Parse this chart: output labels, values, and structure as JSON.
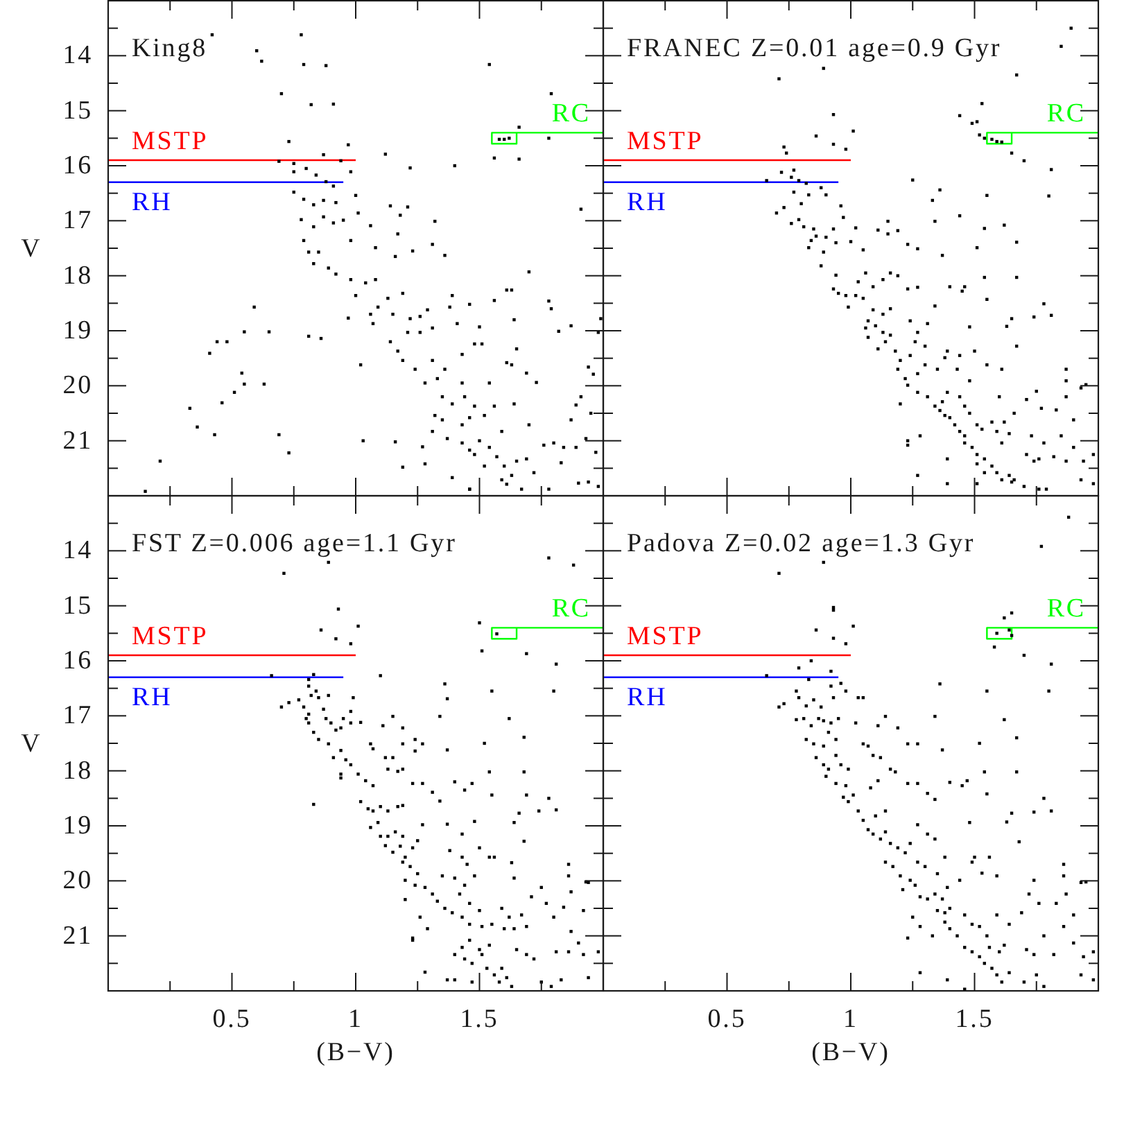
{
  "chart_data": [
    {
      "type": "scatter",
      "title": "King8",
      "ylabel": "V",
      "xlim": [
        0,
        2
      ],
      "ylim": [
        22,
        13
      ],
      "xticks": [
        {
          "value": 0.25,
          "label": null
        },
        0.5,
        {
          "value": 0.75,
          "label": null
        },
        1,
        {
          "value": 1.25,
          "label": null
        },
        1.5,
        {
          "value": 1.75,
          "label": null
        }
      ],
      "yticks": [
        {
          "value": 13.5,
          "label": null
        },
        14,
        {
          "value": 14.5,
          "label": null
        },
        15,
        {
          "value": 15.5,
          "label": null
        },
        16,
        {
          "value": 16.5,
          "label": null
        },
        17,
        {
          "value": 17.5,
          "label": null
        },
        18,
        {
          "value": 18.5,
          "label": null
        },
        19,
        {
          "value": 19.5,
          "label": null
        },
        20,
        {
          "value": 20.5,
          "label": null
        },
        21,
        {
          "value": 21.5,
          "label": null
        }
      ],
      "tick_labels": "y",
      "series": [
        {
          "type": "line",
          "name": "MSTP",
          "color": "#ff0000",
          "x": [
            0,
            1
          ],
          "values": [
            15.9,
            15.9
          ]
        },
        {
          "type": "line",
          "name": "RH",
          "color": "#0000ff",
          "x": [
            0,
            0.95
          ],
          "values": [
            16.3,
            16.3
          ]
        },
        {
          "type": "line",
          "name": "RC",
          "color": "#00ff00",
          "x": [
            2,
            1.55,
            1.55,
            1.65,
            1.65
          ],
          "values": [
            15.4,
            15.4,
            15.6,
            15.6,
            15.4
          ]
        },
        {
          "type": "scatter",
          "marker": "square",
          "color": "#000000",
          "x": [
            0.42,
            0.6,
            0.62,
            0.78,
            0.79,
            0.88,
            1.54,
            0.7,
            0.82,
            0.91,
            1.79,
            1.66,
            1.78,
            1.58,
            1.6,
            1.62,
            1.56,
            1.66,
            0.73,
            0.97,
            1.12,
            1.4,
            1.22,
            0.69,
            0.75,
            0.75,
            0.8,
            0.84,
            0.87,
            0.88,
            0.91,
            0.94,
            0.98,
            0.75,
            0.79,
            0.83,
            0.87,
            0.92,
            1.0,
            0.78,
            0.79,
            0.81,
            0.83,
            0.87,
            0.91,
            0.95,
            0.98,
            1.01,
            0.85,
            0.89,
            0.92,
            0.83,
            1.06,
            1.08,
            1.14,
            1.21,
            1.18,
            1.17,
            1.23,
            1.16,
            1.31,
            1.32,
            1.36,
            1.7,
            1.91,
            1.99,
            0.98,
            1.0,
            1.04,
            1.08,
            1.13,
            1.19,
            1.06,
            1.09,
            1.15,
            1.22,
            1.26,
            0.97,
            1.02,
            1.07,
            1.14,
            1.17,
            1.19,
            1.21,
            1.26,
            1.29,
            1.31,
            1.24,
            1.31,
            1.28,
            1.33,
            1.36,
            1.39,
            1.46,
            1.38,
            1.41,
            1.5,
            1.56,
            1.61,
            1.63,
            1.64,
            1.78,
            1.79,
            1.82,
            1.87,
            1.48,
            1.51,
            1.43,
            1.65,
            1.61,
            1.63,
            1.69,
            1.73,
            1.43,
            1.44,
            1.48,
            1.35,
            1.32,
            1.39,
            1.35,
            1.43,
            1.46,
            1.52,
            1.54,
            1.56,
            1.59,
            1.64,
            1.7,
            1.31,
            1.37,
            1.43,
            1.46,
            1.5,
            1.54,
            1.57,
            1.6,
            1.63,
            1.52,
            1.48,
            1.65,
            1.69,
            1.72,
            1.76,
            1.8,
            1.84,
            1.89,
            1.87,
            1.89,
            1.91,
            1.95,
            1.94,
            1.96,
            1.98,
            1.94,
            1.9,
            1.98,
            1.83,
            1.78,
            1.61,
            1.67,
            1.46,
            1.97,
            1.93,
            1.59,
            0.59,
            0.55,
            0.65,
            0.41,
            0.44,
            0.48,
            0.54,
            0.55,
            0.51,
            0.63,
            0.33,
            0.46,
            0.36,
            0.43,
            0.69,
            0.21,
            0.73,
            0.15,
            0.81,
            0.86,
            1.03,
            1.16,
            1.19,
            1.27,
            1.28,
            1.39,
            1.46
          ],
          "values": [
            13.62,
            13.91,
            14.1,
            13.62,
            14.16,
            14.18,
            14.16,
            14.69,
            14.89,
            14.88,
            14.69,
            15.3,
            15.5,
            15.52,
            15.52,
            15.5,
            15.86,
            15.88,
            15.56,
            15.62,
            15.79,
            16.0,
            16.04,
            15.92,
            15.96,
            16.11,
            16.05,
            16.17,
            15.8,
            16.29,
            16.37,
            15.91,
            16.11,
            16.48,
            16.61,
            16.71,
            16.63,
            16.67,
            16.54,
            16.98,
            17.36,
            17.57,
            17.11,
            16.93,
            17.04,
            16.99,
            17.36,
            16.86,
            17.57,
            17.86,
            17.97,
            17.78,
            17.09,
            17.49,
            16.73,
            16.75,
            16.9,
            17.24,
            17.55,
            17.65,
            17.43,
            17.01,
            17.63,
            17.93,
            16.79,
            18.78,
            18.07,
            18.36,
            18.13,
            18.07,
            18.41,
            18.32,
            18.7,
            18.57,
            18.7,
            18.78,
            18.74,
            18.77,
            19.62,
            18.87,
            19.2,
            19.37,
            19.54,
            19.03,
            19.03,
            18.62,
            18.95,
            19.7,
            19.54,
            19.95,
            19.87,
            19.7,
            18.36,
            18.52,
            18.57,
            18.87,
            18.93,
            18.45,
            18.26,
            18.26,
            18.8,
            18.46,
            18.6,
            19.01,
            18.91,
            19.24,
            19.24,
            19.43,
            19.33,
            19.58,
            19.62,
            19.77,
            19.94,
            19.95,
            20.2,
            20.37,
            20.2,
            20.54,
            20.33,
            20.62,
            20.71,
            20.58,
            20.54,
            19.95,
            20.37,
            20.83,
            20.33,
            20.71,
            20.83,
            20.96,
            21.04,
            21.17,
            21.0,
            21.12,
            21.29,
            21.46,
            21.63,
            21.46,
            21.25,
            21.37,
            21.33,
            21.58,
            21.08,
            21.04,
            21.12,
            21.12,
            20.62,
            20.35,
            20.2,
            20.5,
            19.66,
            19.79,
            19.03,
            21.75,
            21.77,
            21.83,
            21.4,
            21.88,
            21.79,
            21.88,
            21.88,
            21.21,
            20.96,
            21.71,
            18.57,
            19.02,
            19.02,
            19.41,
            19.2,
            19.2,
            19.77,
            19.97,
            20.12,
            19.97,
            20.41,
            20.31,
            20.75,
            20.89,
            20.89,
            21.37,
            21.22,
            21.92,
            19.1,
            19.14,
            21.0,
            21.02,
            21.48,
            21.11,
            21.42,
            21.67,
            21.88
          ]
        }
      ]
    },
    {
      "type": "scatter",
      "title": "FRANEC Z=0.01 age=0.9 Gyr",
      "xlim": [
        0,
        2
      ],
      "ylim": [
        22,
        13
      ],
      "xticks": [
        {
          "value": 0.25,
          "label": null
        },
        0.5,
        {
          "value": 0.75,
          "label": null
        },
        1,
        {
          "value": 1.25,
          "label": null
        },
        1.5,
        {
          "value": 1.75,
          "label": null
        }
      ],
      "yticks": [
        {
          "value": 13.5,
          "label": null
        },
        14,
        {
          "value": 14.5,
          "label": null
        },
        15,
        {
          "value": 15.5,
          "label": null
        },
        16,
        {
          "value": 16.5,
          "label": null
        },
        17,
        {
          "value": 17.5,
          "label": null
        },
        18,
        {
          "value": 18.5,
          "label": null
        },
        19,
        {
          "value": 19.5,
          "label": null
        },
        20,
        {
          "value": 20.5,
          "label": null
        },
        21,
        {
          "value": 21.5,
          "label": null
        }
      ],
      "tick_labels": false,
      "series": [
        {
          "type": "line",
          "name": "MSTP",
          "color": "#ff0000",
          "x": [
            0,
            1
          ],
          "values": [
            15.9,
            15.9
          ]
        },
        {
          "type": "line",
          "name": "RH",
          "color": "#0000ff",
          "x": [
            0,
            0.95
          ],
          "values": [
            16.3,
            16.3
          ]
        },
        {
          "type": "line",
          "name": "RC",
          "color": "#00ff00",
          "x": [
            2,
            1.55,
            1.55,
            1.65,
            1.65
          ],
          "values": [
            15.4,
            15.4,
            15.6,
            15.6,
            15.4
          ]
        },
        {
          "type": "scatter",
          "marker": "square",
          "color": "#000000",
          "x": [
            1.89,
            1.85,
            1.67,
            0.71,
            0.89,
            1.53,
            1.44,
            1.49,
            1.51,
            0.93,
            0.86,
            1.01,
            0.93,
            0.98,
            0.73,
            0.74,
            1.52,
            1.54,
            1.57,
            1.59,
            1.61,
            1.65,
            1.7,
            1.81,
            1.25,
            1.8,
            1.55,
            1.36,
            1.33,
            0.66,
            0.72,
            0.77,
            0.76,
            0.79,
            0.82,
            0.88,
            0.7,
            0.73,
            0.77,
            0.8,
            0.83,
            0.9,
            0.96,
            0.76,
            0.79,
            0.81,
            0.85,
            0.86,
            0.84,
            0.83,
            0.9,
            0.93,
            0.94,
            0.97,
            1.02,
            0.89,
            0.88,
            0.94,
            0.93,
            0.95,
            0.98,
            0.99,
            1.03,
            1.06,
            1.05,
            1.0,
            1.11,
            1.15,
            1.19,
            1.15,
            1.23,
            1.27,
            1.09,
            1.13,
            1.16,
            1.19,
            1.02,
            1.05,
            1.09,
            1.13,
            1.16,
            1.07,
            1.1,
            1.13,
            1.06,
            1.07,
            1.11,
            1.14,
            1.16,
            1.18,
            1.2,
            1.24,
            1.26,
            1.27,
            1.3,
            1.23,
            1.27,
            1.34,
            1.34,
            1.37,
            1.44,
            1.54,
            1.62,
            1.67,
            1.51,
            1.4,
            1.45,
            1.46,
            1.54,
            1.67,
            1.55,
            1.78,
            1.81,
            1.74,
            1.65,
            1.63,
            1.67,
            1.48,
            1.24,
            1.31,
            1.19,
            1.22,
            1.23,
            1.27,
            1.3,
            1.35,
            1.38,
            1.39,
            1.44,
            1.5,
            1.43,
            1.48,
            1.55,
            1.61,
            1.2,
            1.27,
            1.31,
            1.34,
            1.36,
            1.38,
            1.4,
            1.42,
            1.37,
            1.39,
            1.44,
            1.46,
            1.48,
            1.51,
            1.53,
            1.57,
            1.59,
            1.44,
            1.46,
            1.46,
            1.49,
            1.51,
            1.54,
            1.57,
            1.59,
            1.61,
            1.64,
            1.65,
            1.51,
            1.54,
            1.23,
            1.23,
            1.28,
            1.27,
            1.39,
            1.39,
            1.51,
            1.6,
            1.62,
            1.66,
            1.71,
            1.75,
            1.77,
            1.83,
            1.87,
            1.87,
            1.87,
            1.93,
            1.95,
            1.9,
            1.85,
            1.78,
            1.73,
            1.71,
            1.74,
            1.76,
            1.82,
            1.87,
            1.9,
            1.98,
            1.93,
            1.98,
            1.94,
            1.7,
            1.76,
            1.79,
            1.66,
            1.61,
            1.64
          ],
          "values": [
            13.5,
            13.83,
            14.35,
            14.42,
            14.23,
            14.87,
            15.09,
            15.23,
            15.2,
            15.07,
            15.46,
            15.37,
            15.61,
            15.7,
            15.66,
            15.77,
            15.44,
            15.5,
            15.52,
            15.56,
            15.57,
            15.77,
            15.91,
            16.07,
            16.26,
            16.55,
            16.54,
            16.44,
            16.63,
            16.27,
            16.12,
            16.08,
            16.21,
            16.27,
            16.32,
            16.4,
            16.86,
            16.76,
            16.48,
            16.69,
            16.53,
            16.53,
            16.73,
            17.05,
            16.98,
            17.11,
            17.15,
            17.28,
            17.36,
            17.49,
            17.3,
            17.15,
            17.4,
            16.94,
            17.13,
            17.57,
            17.82,
            17.99,
            18.24,
            18.32,
            18.36,
            18.57,
            18.11,
            17.95,
            17.53,
            17.38,
            17.17,
            17.01,
            17.18,
            17.24,
            17.43,
            17.51,
            18.2,
            18.07,
            17.95,
            18.0,
            18.36,
            18.41,
            18.62,
            18.7,
            18.6,
            18.82,
            18.91,
            19.03,
            18.95,
            19.12,
            19.33,
            19.2,
            19.08,
            19.37,
            19.54,
            19.45,
            19.2,
            19.03,
            19.28,
            18.24,
            18.21,
            18.55,
            17.01,
            17.63,
            16.91,
            17.14,
            17.08,
            17.39,
            17.49,
            18.2,
            18.28,
            18.2,
            18.03,
            18.03,
            18.43,
            18.51,
            18.72,
            18.75,
            18.78,
            18.92,
            19.28,
            18.93,
            18.82,
            18.87,
            19.7,
            19.87,
            19.99,
            19.78,
            19.62,
            19.7,
            19.49,
            19.37,
            19.45,
            19.37,
            19.7,
            19.91,
            19.62,
            19.7,
            20.33,
            20.12,
            20.2,
            20.37,
            20.45,
            20.54,
            20.58,
            20.71,
            20.29,
            20.12,
            20.2,
            20.37,
            20.5,
            20.71,
            20.79,
            20.66,
            20.83,
            20.83,
            20.91,
            21.04,
            21.12,
            21.25,
            21.33,
            21.46,
            21.58,
            21.71,
            21.63,
            21.75,
            21.42,
            21.58,
            21.0,
            21.08,
            20.91,
            21.63,
            21.33,
            21.78,
            21.78,
            20.2,
            20.66,
            20.5,
            20.25,
            20.1,
            20.41,
            20.44,
            19.7,
            19.91,
            20.2,
            20.04,
            19.98,
            20.62,
            20.91,
            21.04,
            20.91,
            21.25,
            21.37,
            21.33,
            21.29,
            21.37,
            21.12,
            21.25,
            21.71,
            21.78,
            21.37,
            21.83,
            21.88,
            21.88,
            21.71,
            21.04,
            20.87
          ]
        }
      ]
    },
    {
      "type": "scatter",
      "title": "FST Z=0.006 age=1.1 Gyr",
      "xlabel": "(B−V)",
      "ylabel": "V",
      "xlim": [
        0,
        2
      ],
      "ylim": [
        22,
        13
      ],
      "xticks": [
        {
          "value": 0.25,
          "label": null
        },
        0.5,
        {
          "value": 0.75,
          "label": null
        },
        1,
        {
          "value": 1.25,
          "label": null
        },
        1.5,
        {
          "value": 1.75,
          "label": null
        }
      ],
      "yticks": [
        {
          "value": 13.5,
          "label": null
        },
        14,
        {
          "value": 14.5,
          "label": null
        },
        15,
        {
          "value": 15.5,
          "label": null
        },
        16,
        {
          "value": 16.5,
          "label": null
        },
        17,
        {
          "value": 17.5,
          "label": null
        },
        18,
        {
          "value": 18.5,
          "label": null
        },
        19,
        {
          "value": 19.5,
          "label": null
        },
        20,
        {
          "value": 20.5,
          "label": null
        },
        21,
        {
          "value": 21.5,
          "label": null
        }
      ],
      "series": [
        {
          "type": "line",
          "name": "MSTP",
          "color": "#ff0000",
          "x": [
            0,
            1
          ],
          "values": [
            15.9,
            15.9
          ]
        },
        {
          "type": "line",
          "name": "RH",
          "color": "#0000ff",
          "x": [
            0,
            0.95
          ],
          "values": [
            16.3,
            16.3
          ]
        },
        {
          "type": "line",
          "name": "RC",
          "color": "#00ff00",
          "x": [
            2,
            1.55,
            1.55,
            1.65,
            1.65
          ],
          "values": [
            15.4,
            15.4,
            15.6,
            15.6,
            15.4
          ]
        },
        {
          "type": "scatter",
          "marker": "square",
          "color": "#000000",
          "x": [
            0.71,
            0.89,
            1.78,
            1.88,
            0.93,
            1.01,
            0.86,
            0.92,
            0.98,
            1.5,
            1.57,
            1.51,
            1.69,
            1.81,
            1.1,
            0.66,
            0.83,
            1.36,
            1.37,
            1.55,
            1.8,
            0.7,
            0.73,
            0.81,
            0.81,
            0.82,
            0.84,
            0.85,
            0.89,
            0.99,
            0.77,
            0.79,
            0.8,
            0.81,
            0.81,
            0.83,
            0.85,
            0.87,
            0.88,
            0.9,
            0.92,
            0.94,
            0.95,
            0.98,
            0.98,
            0.89,
            0.91,
            0.94,
            0.96,
            0.98,
            0.94,
            0.94,
            1.02,
            0.83,
            1.06,
            1.07,
            1.11,
            1.15,
            1.19,
            1.01,
            1.04,
            1.07,
            1.02,
            1.05,
            1.07,
            1.1,
            1.13,
            1.17,
            1.19,
            1.06,
            1.09,
            1.1,
            1.13,
            1.16,
            1.19,
            1.12,
            1.15,
            1.18,
            1.2,
            1.23,
            1.25,
            1.27,
            1.13,
            1.17,
            1.19,
            1.12,
            1.15,
            1.23,
            1.27,
            1.24,
            1.27,
            1.24,
            1.19,
            1.31,
            1.34,
            1.37,
            1.34,
            1.4,
            1.44,
            1.47,
            1.52,
            1.54,
            1.55,
            1.68,
            1.68,
            1.69,
            1.62,
            1.78,
            1.81,
            1.74,
            1.66,
            1.64,
            1.68,
            1.37,
            1.43,
            1.48,
            1.38,
            1.43,
            1.45,
            1.5,
            1.54,
            1.56,
            1.63,
            1.64,
            1.86,
            1.86,
            1.87,
            1.93,
            1.94,
            1.75,
            1.71,
            1.77,
            1.84,
            1.92,
            1.19,
            1.22,
            1.25,
            1.2,
            1.24,
            1.28,
            1.31,
            1.2,
            1.33,
            1.36,
            1.39,
            1.35,
            1.4,
            1.44,
            1.48,
            1.42,
            1.46,
            1.5,
            1.43,
            1.46,
            1.51,
            1.55,
            1.59,
            1.62,
            1.67,
            1.6,
            1.64,
            1.69,
            1.26,
            1.29,
            1.23,
            1.23,
            1.28,
            1.4,
            1.43,
            1.37,
            1.4,
            1.46,
            1.5,
            1.54,
            1.44,
            1.47,
            1.51,
            1.53,
            1.56,
            1.58,
            1.59,
            1.61,
            1.63,
            1.65,
            1.69,
            1.72,
            1.75,
            1.79,
            1.83,
            1.87,
            1.9,
            1.86,
            1.92,
            1.94,
            1.98,
            1.47,
            1.8,
            1.81
          ],
          "values": [
            14.41,
            14.21,
            14.13,
            14.26,
            15.06,
            15.37,
            15.44,
            15.6,
            15.69,
            15.31,
            15.51,
            15.82,
            15.87,
            16.06,
            16.27,
            16.27,
            16.25,
            16.42,
            16.69,
            16.55,
            16.55,
            16.84,
            16.76,
            16.34,
            16.46,
            16.63,
            16.55,
            16.67,
            16.63,
            16.67,
            16.71,
            16.84,
            17.05,
            17.13,
            16.97,
            17.3,
            17.43,
            16.88,
            17.05,
            17.13,
            17.26,
            17.22,
            17.05,
            16.92,
            17.13,
            17.51,
            17.76,
            17.63,
            17.8,
            17.89,
            18.13,
            18.06,
            17.12,
            18.61,
            17.51,
            17.6,
            17.18,
            17.01,
            17.22,
            18.06,
            18.18,
            18.27,
            18.56,
            18.69,
            18.73,
            18.65,
            18.73,
            18.65,
            18.63,
            19.03,
            18.94,
            19.19,
            19.19,
            19.11,
            19.19,
            19.36,
            19.48,
            19.37,
            19.57,
            19.4,
            19.27,
            18.98,
            17.97,
            18.01,
            17.97,
            17.76,
            17.76,
            18.23,
            18.23,
            17.64,
            17.51,
            17.43,
            17.51,
            18.39,
            18.55,
            17.62,
            17.01,
            18.2,
            18.35,
            18.23,
            17.5,
            18.02,
            18.44,
            17.39,
            18.02,
            18.44,
            17.05,
            18.5,
            18.71,
            18.73,
            18.77,
            18.94,
            19.28,
            18.97,
            19.15,
            18.92,
            19.45,
            19.57,
            19.7,
            19.4,
            19.57,
            19.57,
            19.67,
            19.95,
            19.7,
            19.91,
            20.2,
            20.02,
            20.03,
            20.12,
            20.29,
            20.41,
            20.48,
            20.54,
            19.66,
            19.74,
            19.87,
            19.99,
            20.08,
            20.12,
            20.24,
            20.34,
            20.37,
            20.5,
            20.58,
            19.91,
            19.95,
            20.08,
            19.91,
            20.24,
            20.41,
            20.54,
            20.66,
            20.79,
            20.83,
            20.79,
            20.5,
            20.66,
            20.62,
            20.87,
            20.87,
            20.83,
            20.66,
            20.87,
            21.04,
            21.08,
            21.66,
            21.34,
            21.21,
            21.8,
            21.8,
            21.08,
            21.25,
            21.17,
            21.42,
            21.5,
            21.34,
            21.59,
            21.71,
            21.84,
            21.59,
            21.76,
            21.92,
            21.25,
            21.34,
            21.42,
            21.84,
            21.92,
            21.8,
            20.92,
            21.13,
            21.29,
            21.34,
            21.76,
            21.29,
            21.84,
            20.66,
            21.29
          ]
        }
      ]
    },
    {
      "type": "scatter",
      "title": "Padova Z=0.02 age=1.3 Gyr",
      "xlabel": "(B−V)",
      "xlim": [
        0,
        2
      ],
      "ylim": [
        22,
        13
      ],
      "xticks": [
        {
          "value": 0.25,
          "label": null
        },
        0.5,
        {
          "value": 0.75,
          "label": null
        },
        1,
        {
          "value": 1.25,
          "label": null
        },
        1.5,
        {
          "value": 1.75,
          "label": null
        }
      ],
      "yticks": [
        {
          "value": 13.5,
          "label": null
        },
        14,
        {
          "value": 14.5,
          "label": null
        },
        15,
        {
          "value": 15.5,
          "label": null
        },
        16,
        {
          "value": 16.5,
          "label": null
        },
        17,
        {
          "value": 17.5,
          "label": null
        },
        18,
        {
          "value": 18.5,
          "label": null
        },
        19,
        {
          "value": 19.5,
          "label": null
        },
        20,
        {
          "value": 20.5,
          "label": null
        },
        21,
        {
          "value": 21.5,
          "label": null
        }
      ],
      "tick_labels": "x",
      "series": [
        {
          "type": "line",
          "name": "MSTP",
          "color": "#ff0000",
          "x": [
            0,
            1
          ],
          "values": [
            15.9,
            15.9
          ]
        },
        {
          "type": "line",
          "name": "RH",
          "color": "#0000ff",
          "x": [
            0,
            0.95
          ],
          "values": [
            16.3,
            16.3
          ]
        },
        {
          "type": "line",
          "name": "RC",
          "color": "#00ff00",
          "x": [
            2,
            1.55,
            1.55,
            1.65,
            1.65
          ],
          "values": [
            15.4,
            15.4,
            15.6,
            15.6,
            15.4
          ]
        },
        {
          "type": "scatter",
          "marker": "square",
          "color": "#000000",
          "x": [
            1.88,
            1.77,
            0.71,
            0.89,
            0.93,
            0.93,
            0.86,
            1.01,
            0.93,
            0.98,
            1.62,
            1.65,
            1.59,
            1.64,
            1.65,
            1.58,
            1.7,
            1.81,
            1.36,
            1.55,
            1.8,
            1.62,
            1.67,
            1.34,
            1.37,
            1.52,
            0.66,
            0.79,
            0.84,
            0.92,
            0.71,
            0.73,
            0.78,
            0.79,
            0.83,
            0.82,
            0.85,
            0.88,
            0.92,
            0.93,
            0.96,
            0.98,
            1.03,
            1.05,
            0.78,
            0.81,
            0.84,
            0.87,
            0.89,
            0.92,
            0.95,
            0.82,
            0.85,
            0.89,
            0.91,
            0.94,
            1.02,
            0.86,
            0.89,
            0.91,
            0.94,
            0.96,
            0.99,
            0.9,
            0.94,
            0.98,
            0.97,
            0.99,
            1.01,
            1.03,
            1.05,
            1.07,
            1.09,
            1.12,
            1.14,
            1.1,
            1.14,
            1.07,
            1.11,
            1.14,
            1.19,
            1.05,
            1.09,
            1.12,
            1.16,
            1.18,
            1.08,
            1.11,
            1.23,
            1.27,
            1.23,
            1.27,
            1.31,
            1.34,
            1.4,
            1.45,
            1.47,
            1.54,
            1.67,
            1.55,
            1.78,
            1.81,
            1.74,
            1.65,
            1.63,
            1.68,
            1.48,
            1.16,
            1.19,
            1.22,
            1.14,
            1.17,
            1.2,
            1.21,
            1.24,
            1.26,
            1.24,
            1.27,
            1.31,
            1.34,
            1.27,
            1.3,
            1.35,
            1.38,
            1.28,
            1.31,
            1.34,
            1.37,
            1.35,
            1.38,
            1.4,
            1.39,
            1.44,
            1.49,
            1.5,
            1.56,
            1.53,
            1.59,
            1.25,
            1.28,
            1.33,
            1.38,
            1.4,
            1.43,
            1.46,
            1.49,
            1.52,
            1.55,
            1.46,
            1.49,
            1.52,
            1.54,
            1.57,
            1.59,
            1.61,
            1.64,
            1.56,
            1.6,
            1.62,
            1.23,
            1.28,
            1.39,
            1.59,
            1.64,
            1.69,
            1.72,
            1.76,
            1.74,
            1.86,
            1.86,
            1.87,
            1.93,
            1.95,
            1.83,
            1.9,
            1.86,
            1.78,
            1.71,
            1.74,
            1.82,
            1.9,
            1.98,
            1.94,
            1.93,
            1.98,
            1.7,
            1.75,
            1.78,
            1.46
          ],
          "values": [
            13.39,
            13.92,
            14.41,
            14.21,
            15.08,
            15.03,
            15.44,
            15.37,
            15.59,
            15.69,
            15.22,
            15.13,
            15.5,
            15.44,
            15.54,
            15.75,
            15.9,
            16.06,
            16.42,
            16.55,
            16.55,
            17.07,
            17.4,
            17.01,
            17.62,
            17.5,
            16.27,
            16.13,
            16.0,
            16.19,
            16.84,
            16.78,
            16.55,
            16.67,
            16.34,
            16.82,
            16.71,
            16.84,
            16.46,
            16.67,
            16.41,
            16.55,
            16.67,
            16.67,
            17.07,
            17.05,
            17.18,
            17.05,
            17.09,
            17.13,
            17.05,
            17.43,
            17.51,
            17.55,
            17.3,
            17.43,
            17.13,
            17.76,
            17.89,
            17.97,
            17.72,
            17.89,
            17.97,
            18.1,
            18.23,
            18.27,
            18.48,
            18.56,
            18.44,
            18.73,
            18.9,
            19.07,
            19.15,
            19.24,
            19.11,
            18.82,
            18.73,
            17.55,
            17.18,
            17.01,
            17.22,
            17.51,
            17.72,
            17.76,
            17.97,
            18.02,
            18.31,
            18.18,
            17.51,
            17.51,
            18.23,
            18.23,
            18.41,
            18.52,
            18.21,
            18.27,
            18.18,
            18.02,
            18.02,
            18.42,
            18.5,
            18.73,
            18.75,
            18.77,
            18.93,
            19.29,
            18.94,
            19.32,
            19.4,
            19.49,
            19.66,
            19.74,
            19.91,
            20.16,
            19.99,
            20.08,
            19.32,
            18.98,
            19.15,
            19.24,
            19.66,
            19.74,
            19.87,
            19.57,
            20.29,
            20.33,
            20.24,
            20.33,
            20.54,
            20.58,
            20.5,
            20.12,
            19.99,
            19.66,
            19.57,
            19.57,
            19.86,
            19.91,
            20.66,
            20.83,
            21.0,
            20.75,
            20.87,
            21.0,
            20.62,
            20.79,
            20.83,
            21.0,
            21.21,
            21.29,
            21.38,
            21.5,
            21.59,
            21.71,
            21.84,
            21.67,
            21.21,
            21.29,
            21.17,
            21.04,
            21.67,
            21.8,
            20.62,
            20.79,
            20.58,
            20.24,
            20.41,
            19.99,
            19.7,
            19.91,
            20.24,
            20.03,
            20.02,
            20.41,
            20.62,
            20.83,
            21.0,
            21.25,
            21.34,
            21.34,
            21.13,
            21.29,
            21.38,
            21.71,
            21.8,
            21.84,
            21.71,
            21.92,
            21.97
          ]
        }
      ]
    }
  ]
}
